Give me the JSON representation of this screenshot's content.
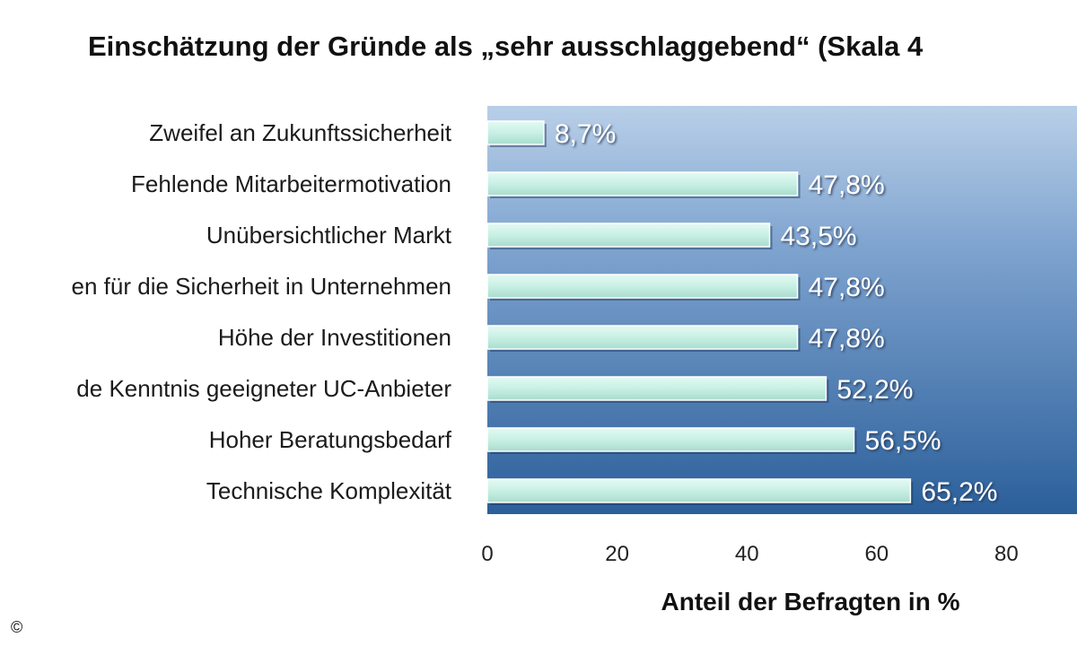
{
  "chart_data": {
    "type": "bar",
    "orientation": "horizontal",
    "title": "Einschätzung der Gründe als „sehr ausschlaggebend“ (Skala 4",
    "xlabel": "Anteil der Befragten in %",
    "ylabel": "",
    "xlim": [
      0,
      90
    ],
    "xticks": [
      "0",
      "20",
      "40",
      "60",
      "80"
    ],
    "categories": [
      "Zweifel an Zukunftssicherheit",
      "Fehlende Mitarbeitermotivation",
      "Unübersichtlicher Markt",
      "en für die Sicherheit in Unternehmen",
      "Höhe der Investitionen",
      "de Kenntnis geeigneter UC-Anbieter",
      "Hoher Beratungsbedarf",
      "Technische Komplexität"
    ],
    "values": [
      8.7,
      47.8,
      43.5,
      47.8,
      47.8,
      52.2,
      56.5,
      65.2
    ],
    "value_labels": [
      "8,7%",
      "47,8%",
      "43,5%",
      "47,8%",
      "47,8%",
      "52,2%",
      "56,5%",
      "65,2%"
    ],
    "grid": false,
    "legend": "none",
    "colors": {
      "bar_fill": "#c8f0e4",
      "plot_bg_top": "#b9cfe8",
      "plot_bg_bottom": "#2b5f9a",
      "value_text": "#ffffff"
    }
  },
  "footer": {
    "copyright": "©"
  }
}
